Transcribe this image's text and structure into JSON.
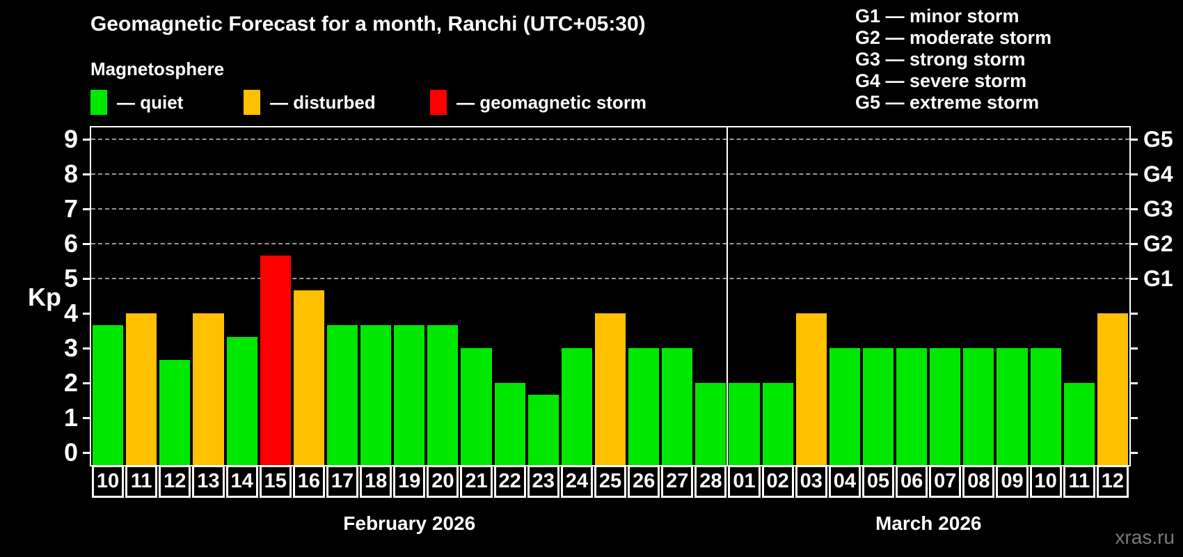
{
  "header": {
    "title": "Geomagnetic Forecast for a month, Ranchi (UTC+05:30)",
    "subtitle": "Magnetosphere"
  },
  "legend": {
    "items": [
      {
        "key": "quiet",
        "label": "— quiet",
        "color": "#00e800"
      },
      {
        "key": "disturbed",
        "label": "— disturbed",
        "color": "#ffc000"
      },
      {
        "key": "storm",
        "label": "— geomagnetic storm",
        "color": "#ff0000"
      }
    ]
  },
  "g_scale_legend": {
    "items": [
      "G1 — minor storm",
      "G2 — moderate storm",
      "G3 — strong storm",
      "G4 — severe storm",
      "G5 — extreme storm"
    ]
  },
  "watermark": "xras.ru",
  "colors": {
    "quiet": "#00e800",
    "disturbed": "#ffc000",
    "storm": "#ff0000",
    "background": "#000000",
    "text": "#ffffff",
    "grid": "#999999",
    "watermark": "#7a7a7a"
  },
  "chart_data": {
    "type": "bar",
    "title": "Geomagnetic Forecast for a month, Ranchi (UTC+05:30)",
    "subtitle": "Magnetosphere",
    "ylabel": "Kp",
    "ylim": [
      0,
      9
    ],
    "y_ticks": [
      0,
      1,
      2,
      3,
      4,
      5,
      6,
      7,
      8,
      9
    ],
    "gridlines_at_kp": [
      5,
      6,
      7,
      8,
      9
    ],
    "grid": "dashed, only at G-storm levels Kp 5-9",
    "legend_position": "top-left",
    "right_axis_labels": [
      {
        "kp": 5,
        "label": "G1"
      },
      {
        "kp": 6,
        "label": "G2"
      },
      {
        "kp": 7,
        "label": "G3"
      },
      {
        "kp": 8,
        "label": "G4"
      },
      {
        "kp": 9,
        "label": "G5"
      }
    ],
    "months": [
      {
        "label": "February 2026",
        "days": [
          "10",
          "11",
          "12",
          "13",
          "14",
          "15",
          "16",
          "17",
          "18",
          "19",
          "20",
          "21",
          "22",
          "23",
          "24",
          "25",
          "26",
          "27",
          "28"
        ],
        "values": [
          3.67,
          4,
          2.67,
          4,
          3.33,
          5.67,
          4.67,
          3.67,
          3.67,
          3.67,
          3.67,
          3,
          2,
          1.67,
          3,
          4,
          3,
          3,
          2
        ],
        "status": [
          "quiet",
          "disturbed",
          "quiet",
          "disturbed",
          "quiet",
          "storm",
          "disturbed",
          "quiet",
          "quiet",
          "quiet",
          "quiet",
          "quiet",
          "quiet",
          "quiet",
          "quiet",
          "disturbed",
          "quiet",
          "quiet",
          "quiet"
        ]
      },
      {
        "label": "March 2026",
        "days": [
          "01",
          "02",
          "03",
          "04",
          "05",
          "06",
          "07",
          "08",
          "09",
          "10",
          "11",
          "12"
        ],
        "values": [
          2,
          2,
          4,
          3,
          3,
          3,
          3,
          3,
          3,
          3,
          2,
          4
        ],
        "status": [
          "quiet",
          "quiet",
          "disturbed",
          "quiet",
          "quiet",
          "quiet",
          "quiet",
          "quiet",
          "quiet",
          "quiet",
          "quiet",
          "disturbed"
        ]
      }
    ]
  }
}
